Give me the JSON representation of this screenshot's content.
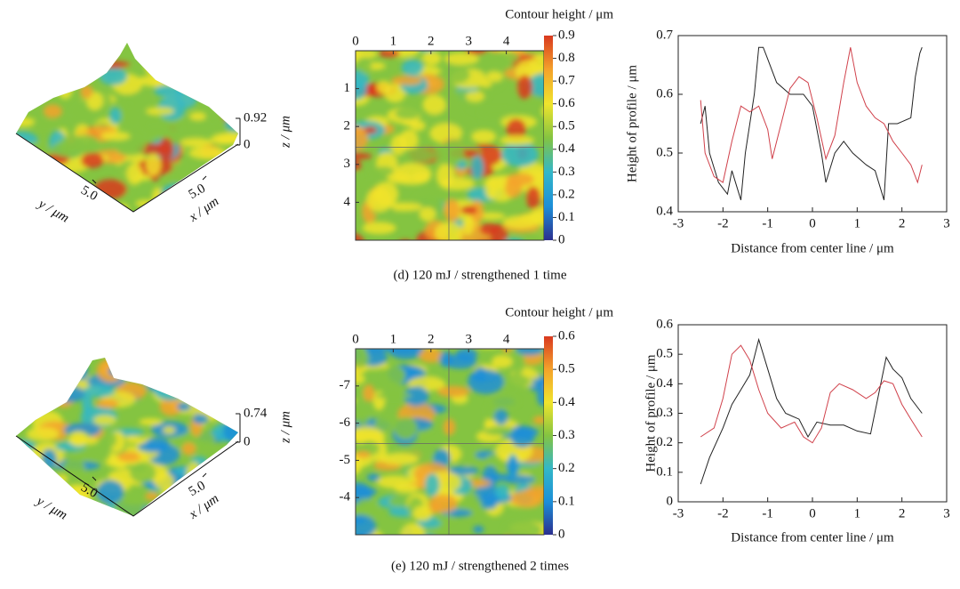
{
  "captions": [
    "(d) 120 mJ / strengthened 1 time",
    "(e) 120 mJ / strengthened 2 times"
  ],
  "chart_data": [
    {
      "type": "surface",
      "zlabel": "z / μm",
      "xlabel": "x / μm",
      "ylabel": "y / μm",
      "zticks": [
        0,
        0.92
      ],
      "xticks": [
        {
          "value": 5,
          "label": "5.0"
        }
      ],
      "yticks": [
        {
          "value": 5,
          "label": "5.0"
        }
      ],
      "colormap": [
        "#2b2f8f",
        "#1c8fd8",
        "#33b7c8",
        "#84c441",
        "#f0e42c",
        "#f4a22b",
        "#d9391f"
      ]
    },
    {
      "type": "heatmap",
      "colorbar_label": "Contour height / μm",
      "xlim": [
        0,
        5
      ],
      "xticks": [
        0,
        1,
        2,
        3,
        4
      ],
      "ylim": [
        0,
        5
      ],
      "yticks": [
        1,
        2,
        3,
        4
      ],
      "clim": [
        0,
        0.9
      ],
      "cticks": [
        0,
        0.1,
        0.2,
        0.3,
        0.4,
        0.5,
        0.6,
        0.7,
        0.8,
        0.9
      ],
      "colormap": [
        "#2b2f8f",
        "#1c8fd8",
        "#33b7c8",
        "#84c441",
        "#f0e42c",
        "#f4a22b",
        "#d9391f"
      ]
    },
    {
      "type": "line",
      "xlabel": "Distance from center line / μm",
      "ylabel": "Height of profile / μm",
      "xlim": [
        -3,
        3
      ],
      "xticks": [
        -3,
        -2,
        -1,
        0,
        1,
        2,
        3
      ],
      "ylim": [
        0.4,
        0.7
      ],
      "yticks": [
        0.4,
        0.5,
        0.6,
        0.7
      ],
      "series": [
        {
          "color": "#222222",
          "x": [
            -2.5,
            -2.4,
            -2.3,
            -2.1,
            -1.9,
            -1.8,
            -1.6,
            -1.5,
            -1.3,
            -1.2,
            -1.1,
            -1.0,
            -0.8,
            -0.5,
            -0.2,
            0,
            0.2,
            0.3,
            0.5,
            0.7,
            0.9,
            1.2,
            1.4,
            1.6,
            1.7,
            1.9,
            2.2,
            2.3,
            2.4,
            2.45
          ],
          "values": [
            0.55,
            0.58,
            0.5,
            0.45,
            0.43,
            0.47,
            0.42,
            0.5,
            0.6,
            0.68,
            0.68,
            0.66,
            0.62,
            0.6,
            0.6,
            0.58,
            0.5,
            0.45,
            0.5,
            0.52,
            0.5,
            0.48,
            0.47,
            0.42,
            0.55,
            0.55,
            0.56,
            0.63,
            0.67,
            0.68
          ]
        },
        {
          "color": "#d0404a",
          "x": [
            -2.5,
            -2.4,
            -2.2,
            -2.0,
            -1.8,
            -1.6,
            -1.4,
            -1.2,
            -1.0,
            -0.9,
            -0.7,
            -0.5,
            -0.3,
            -0.1,
            0.1,
            0.3,
            0.5,
            0.7,
            0.85,
            1.0,
            1.2,
            1.4,
            1.6,
            1.8,
            2.0,
            2.2,
            2.35,
            2.45
          ],
          "values": [
            0.59,
            0.5,
            0.46,
            0.45,
            0.52,
            0.58,
            0.57,
            0.58,
            0.54,
            0.49,
            0.55,
            0.61,
            0.63,
            0.62,
            0.56,
            0.49,
            0.53,
            0.62,
            0.68,
            0.62,
            0.58,
            0.56,
            0.55,
            0.52,
            0.5,
            0.48,
            0.45,
            0.48
          ]
        }
      ]
    },
    {
      "type": "surface",
      "zlabel": "z / μm",
      "xlabel": "x / μm",
      "ylabel": "y / μm",
      "zticks": [
        0,
        0.74
      ],
      "xticks": [
        {
          "value": 5,
          "label": "5.0"
        }
      ],
      "yticks": [
        {
          "value": 5,
          "label": "5.0"
        }
      ],
      "colormap": [
        "#2b2f8f",
        "#1c8fd8",
        "#33b7c8",
        "#84c441",
        "#f0e42c",
        "#f4a22b",
        "#d9391f"
      ]
    },
    {
      "type": "heatmap",
      "colorbar_label": "Contour height / μm",
      "xlim": [
        0,
        5
      ],
      "xticks": [
        0,
        1,
        2,
        3,
        4
      ],
      "ylim": [
        -8,
        -3
      ],
      "yticks": [
        -7,
        -6,
        -5,
        -4
      ],
      "clim": [
        0,
        0.6
      ],
      "cticks": [
        0,
        0.1,
        0.2,
        0.3,
        0.4,
        0.5,
        0.6
      ],
      "colormap": [
        "#2b2f8f",
        "#1c8fd8",
        "#33b7c8",
        "#84c441",
        "#f0e42c",
        "#f4a22b",
        "#d9391f"
      ]
    },
    {
      "type": "line",
      "xlabel": "Distance from center line / μm",
      "ylabel": "Height of profile / μm",
      "xlim": [
        -3,
        3
      ],
      "xticks": [
        -3,
        -2,
        -1,
        0,
        1,
        2,
        3
      ],
      "ylim": [
        0,
        0.6
      ],
      "yticks": [
        0,
        0.1,
        0.2,
        0.3,
        0.4,
        0.5,
        0.6
      ],
      "series": [
        {
          "color": "#222222",
          "x": [
            -2.5,
            -2.3,
            -2.0,
            -1.8,
            -1.6,
            -1.4,
            -1.2,
            -1.0,
            -0.8,
            -0.6,
            -0.3,
            -0.1,
            0.1,
            0.4,
            0.7,
            1.0,
            1.3,
            1.5,
            1.65,
            1.8,
            2.0,
            2.2,
            2.45
          ],
          "values": [
            0.06,
            0.15,
            0.25,
            0.33,
            0.38,
            0.43,
            0.55,
            0.45,
            0.35,
            0.3,
            0.28,
            0.22,
            0.27,
            0.26,
            0.26,
            0.24,
            0.23,
            0.38,
            0.49,
            0.45,
            0.42,
            0.35,
            0.3
          ]
        },
        {
          "color": "#d0404a",
          "x": [
            -2.5,
            -2.2,
            -2.0,
            -1.8,
            -1.6,
            -1.4,
            -1.2,
            -1.0,
            -0.7,
            -0.4,
            -0.2,
            0.0,
            0.2,
            0.4,
            0.6,
            0.9,
            1.2,
            1.4,
            1.6,
            1.8,
            2.0,
            2.2,
            2.45
          ],
          "values": [
            0.22,
            0.25,
            0.35,
            0.5,
            0.53,
            0.48,
            0.38,
            0.3,
            0.25,
            0.27,
            0.22,
            0.2,
            0.25,
            0.37,
            0.4,
            0.38,
            0.35,
            0.37,
            0.41,
            0.4,
            0.33,
            0.28,
            0.22
          ]
        }
      ]
    }
  ]
}
